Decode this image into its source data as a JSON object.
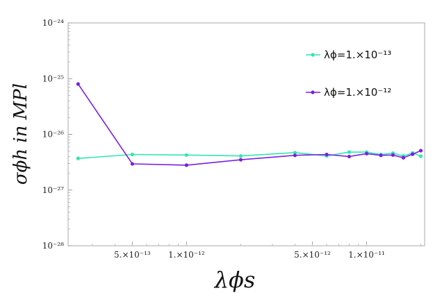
{
  "chart_data": {
    "type": "line",
    "xlabel": "λϕs",
    "ylabel": "σϕh in MPl",
    "xscale": "log",
    "yscale": "log",
    "xlim": [
      2.2e-13,
      2.1e-11
    ],
    "ylim": [
      1e-28,
      1e-24
    ],
    "grid": false,
    "legend_position": "top-right",
    "x_ticks": [
      {
        "value": 5e-13,
        "label": "5.×10⁻¹³"
      },
      {
        "value": 1e-12,
        "label": "1.×10⁻¹²"
      },
      {
        "value": 5e-12,
        "label": "5.×10⁻¹²"
      },
      {
        "value": 1e-11,
        "label": "1.×10⁻¹¹"
      }
    ],
    "y_ticks": [
      {
        "value": 1e-28,
        "label": "10⁻²⁸"
      },
      {
        "value": 1e-27,
        "label": "10⁻²⁷"
      },
      {
        "value": 1e-26,
        "label": "10⁻²⁶"
      },
      {
        "value": 1e-25,
        "label": "10⁻²⁵"
      },
      {
        "value": 1e-24,
        "label": "10⁻²⁴"
      }
    ],
    "series": [
      {
        "name": "λϕ=1.×10⁻¹³",
        "color": "#2fe6b0",
        "points": [
          [
            2.5e-13,
            3.7e-27
          ],
          [
            5e-13,
            4.35e-27
          ],
          [
            1e-12,
            4.25e-27
          ],
          [
            2e-12,
            4.1e-27
          ],
          [
            4e-12,
            4.7e-27
          ],
          [
            6e-12,
            4.1e-27
          ],
          [
            8e-12,
            4.8e-27
          ],
          [
            1e-11,
            4.8e-27
          ],
          [
            1.2e-11,
            4.35e-27
          ],
          [
            1.4e-11,
            4.6e-27
          ],
          [
            1.6e-11,
            4.1e-27
          ],
          [
            1.8e-11,
            4.65e-27
          ],
          [
            2e-11,
            4.05e-27
          ]
        ]
      },
      {
        "name": "λϕ=1.×10⁻¹²",
        "color": "#7a1fe0",
        "points": [
          [
            2.5e-13,
            8e-26
          ],
          [
            5e-13,
            2.95e-27
          ],
          [
            1e-12,
            2.8e-27
          ],
          [
            2e-12,
            3.5e-27
          ],
          [
            4e-12,
            4.2e-27
          ],
          [
            6e-12,
            4.35e-27
          ],
          [
            8e-12,
            4e-27
          ],
          [
            1e-11,
            4.5e-27
          ],
          [
            1.2e-11,
            4.2e-27
          ],
          [
            1.4e-11,
            4.25e-27
          ],
          [
            1.6e-11,
            3.8e-27
          ],
          [
            1.8e-11,
            4.4e-27
          ],
          [
            2e-11,
            5.1e-27
          ]
        ]
      }
    ]
  }
}
